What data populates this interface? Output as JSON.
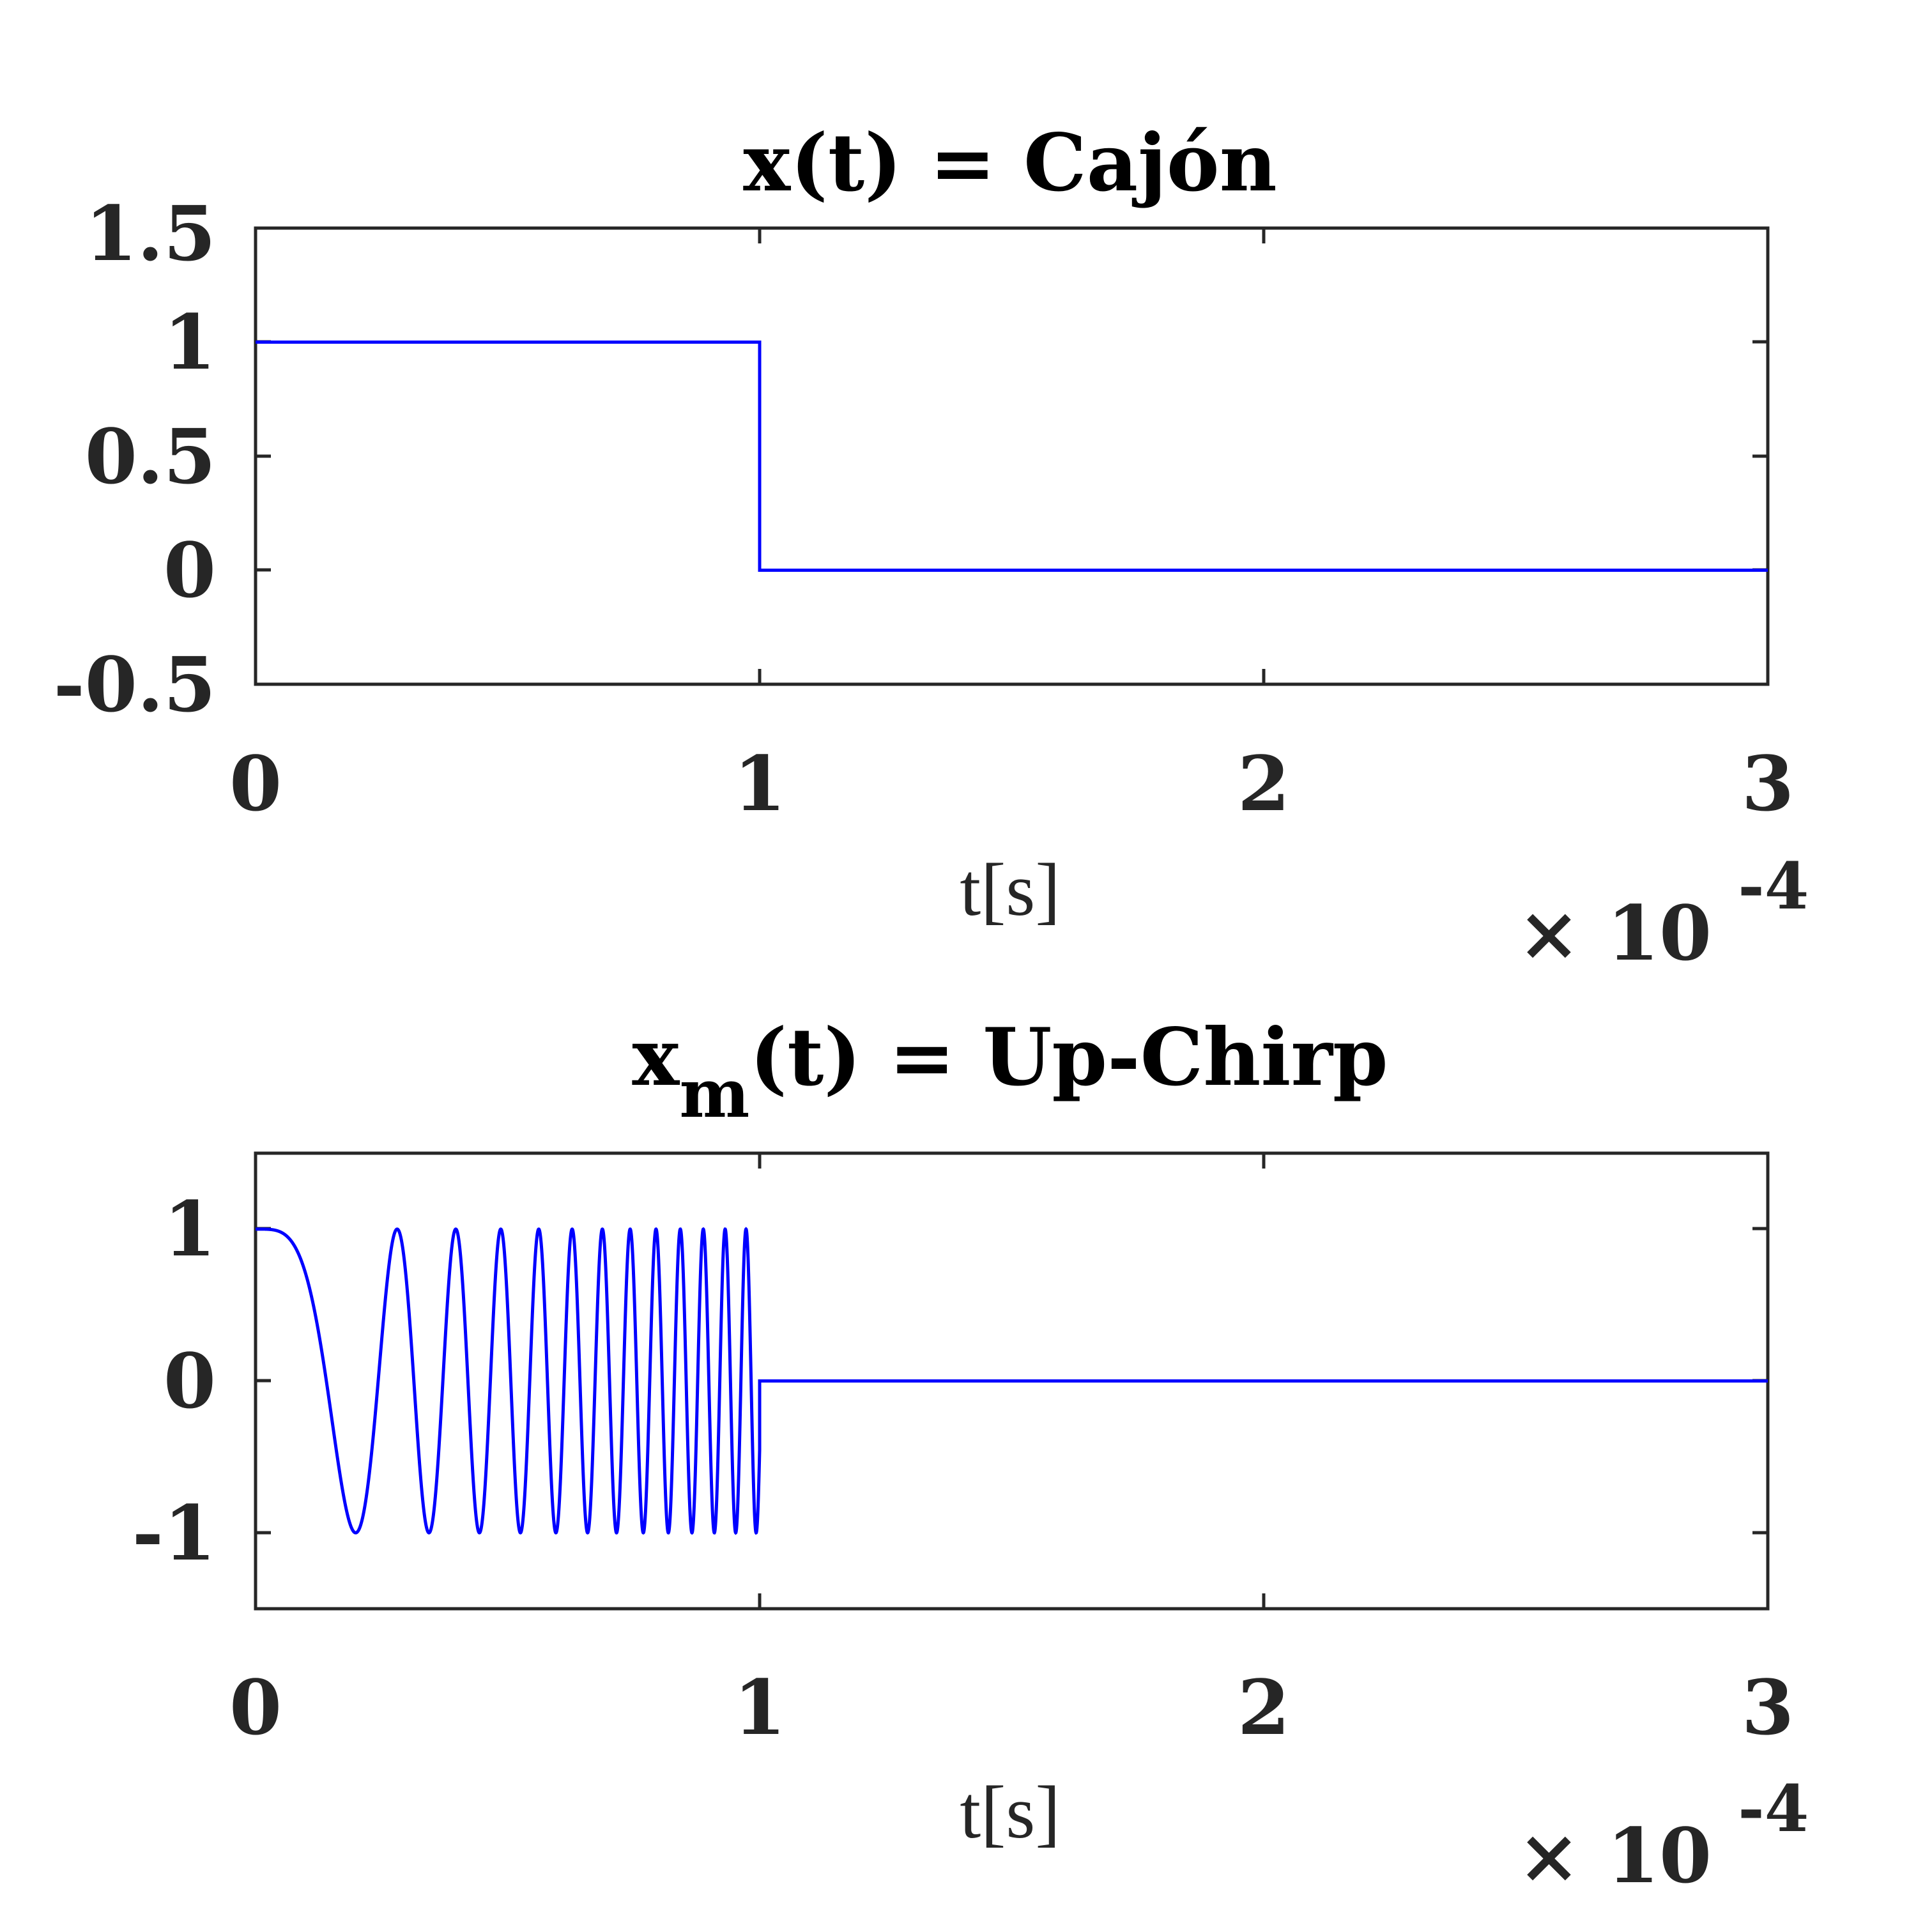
{
  "chart_data": [
    {
      "type": "line",
      "title": "x(t) = Cajón",
      "xlabel": "t[s]",
      "ylabel": "",
      "x_multiplier_label": "× 10",
      "x_exponent": "-4",
      "xlim": [
        0,
        3
      ],
      "ylim": [
        -0.5,
        1.5
      ],
      "xticks": [
        "0",
        "1",
        "2",
        "3"
      ],
      "yticks": [
        "1.5",
        "1",
        "0.5",
        "0",
        "-0.5"
      ],
      "grid": false,
      "color": "#0000ff",
      "series": [
        {
          "function": "rect",
          "x": [
            0,
            1,
            1,
            3
          ],
          "y": [
            1,
            1,
            0,
            0
          ]
        }
      ]
    },
    {
      "type": "line",
      "title_main": "x",
      "title_sub": "m",
      "title_rest": "(t) = Up-Chirp",
      "xlabel": "t[s]",
      "ylabel": "",
      "x_multiplier_label": "× 10",
      "x_exponent": "-4",
      "xlim": [
        0,
        3
      ],
      "ylim": [
        -1.5,
        1.5
      ],
      "xticks": [
        "0",
        "1",
        "2",
        "3"
      ],
      "yticks": [
        "1",
        "0",
        "-1"
      ],
      "grid": false,
      "color": "#0000ff",
      "series": [
        {
          "function": "cos(pi*k*t^2) for 0<=t<=1, 0 after",
          "k": 25.35,
          "x_start": 0,
          "x_end": 1,
          "zero_until": 3
        }
      ]
    }
  ]
}
